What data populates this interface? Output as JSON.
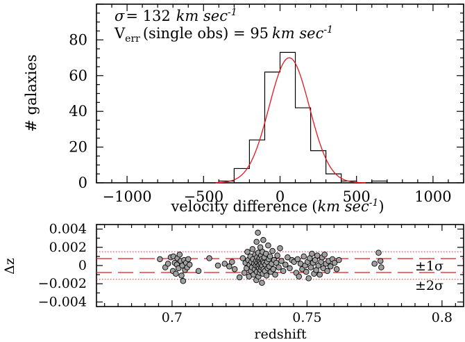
{
  "chart_data": [
    {
      "type": "histogram",
      "xlabel": "velocity difference",
      "xlabel_unit": "km sec",
      "xlabel_unit_exp": "-1",
      "ylabel": "# galaxies",
      "xlim": [
        -1200,
        1200
      ],
      "ylim": [
        0,
        100
      ],
      "xticks": [
        -1000,
        -500,
        0,
        500,
        1000
      ],
      "yticks": [
        0,
        20,
        40,
        60,
        80
      ],
      "annotation_sigma": {
        "symbol": "σ",
        "text": "=  132",
        "unit": "km sec",
        "unit_exp": "-1"
      },
      "annotation_verr": {
        "symbol": "V",
        "subscript": "err",
        "text": "(single obs) = 95",
        "unit": "km sec",
        "unit_exp": "-1"
      },
      "bin_width": 100,
      "bins": [
        {
          "x0": -400,
          "x1": -300,
          "count": 1
        },
        {
          "x0": -300,
          "x1": -200,
          "count": 8
        },
        {
          "x0": -200,
          "x1": -100,
          "count": 24
        },
        {
          "x0": -100,
          "x1": 0,
          "count": 62
        },
        {
          "x0": 0,
          "x1": 100,
          "count": 73
        },
        {
          "x0": 100,
          "x1": 200,
          "count": 42
        },
        {
          "x0": 200,
          "x1": 300,
          "count": 18
        },
        {
          "x0": 300,
          "x1": 400,
          "count": 5
        },
        {
          "x0": 400,
          "x1": 500,
          "count": 1
        },
        {
          "x0": 500,
          "x1": 600,
          "count": 0
        },
        {
          "x0": 600,
          "x1": 700,
          "count": 1
        }
      ],
      "gaussian_fit": {
        "mean": 60,
        "sigma": 132,
        "amplitude": 70,
        "color": "#e8141c"
      },
      "histogram_color": "#000000"
    },
    {
      "type": "scatter",
      "xlabel": "redshift",
      "ylabel": "Δz",
      "xlim": [
        0.672,
        0.808
      ],
      "ylim": [
        -0.0045,
        0.0045
      ],
      "xticks": [
        "0.7",
        "0.75",
        "0.8"
      ],
      "xtick_values": [
        0.7,
        0.75,
        0.8
      ],
      "yticks": [
        "0.004",
        "0.002",
        "0",
        "−0.002",
        "−0.004"
      ],
      "ytick_values": [
        0.004,
        0.002,
        0,
        -0.002,
        -0.004
      ],
      "band_1sigma": 0.00076,
      "band_2sigma": 0.00152,
      "band_1sigma_label": "±1σ",
      "band_2sigma_label": "±2σ",
      "line_color": "#e8141c",
      "marker_fill": "#a0a0a0",
      "marker_edge": "#000000",
      "points": [
        [
          0.6955,
          0.0007
        ],
        [
          0.6975,
          -0.0002
        ],
        [
          0.6985,
          0.0002
        ],
        [
          0.6995,
          0.0009
        ],
        [
          0.7003,
          -0.0006
        ],
        [
          0.7005,
          0.001
        ],
        [
          0.701,
          0.0003
        ],
        [
          0.7014,
          -0.0009
        ],
        [
          0.7018,
          0.0001
        ],
        [
          0.702,
          0.0008
        ],
        [
          0.7024,
          -0.0003
        ],
        [
          0.7028,
          0.0012
        ],
        [
          0.7032,
          0.0005
        ],
        [
          0.7035,
          -0.0011
        ],
        [
          0.7038,
          0.0
        ],
        [
          0.7041,
          -0.0017
        ],
        [
          0.7045,
          0.0006
        ],
        [
          0.7048,
          -0.0005
        ],
        [
          0.7052,
          0.0003
        ],
        [
          0.7056,
          -0.0002
        ],
        [
          0.706,
          0.0007
        ],
        [
          0.7065,
          0.0001
        ],
        [
          0.7098,
          -0.0006
        ],
        [
          0.7138,
          0.0008
        ],
        [
          0.717,
          0.0
        ],
        [
          0.7195,
          0.0002
        ],
        [
          0.7212,
          -0.0001
        ],
        [
          0.7222,
          0.0004
        ],
        [
          0.7232,
          -0.0004
        ],
        [
          0.725,
          -0.0013
        ],
        [
          0.7262,
          0.0008
        ],
        [
          0.7268,
          -0.0008
        ],
        [
          0.7272,
          0.0003
        ],
        [
          0.7276,
          -0.0003
        ],
        [
          0.7279,
          0.0015
        ],
        [
          0.7282,
          0.0006
        ],
        [
          0.7285,
          -0.0012
        ],
        [
          0.7287,
          0.0001
        ],
        [
          0.729,
          0.001
        ],
        [
          0.7292,
          -0.0006
        ],
        [
          0.7294,
          0.0004
        ],
        [
          0.7296,
          -0.0002
        ],
        [
          0.7298,
          0.0018
        ],
        [
          0.73,
          0.0007
        ],
        [
          0.7302,
          -0.001
        ],
        [
          0.7304,
          0.0002
        ],
        [
          0.7306,
          -0.0004
        ],
        [
          0.7308,
          0.0012
        ],
        [
          0.731,
          0.0
        ],
        [
          0.7311,
          0.0005
        ],
        [
          0.7312,
          -0.0016
        ],
        [
          0.7313,
          0.0026
        ],
        [
          0.7314,
          -0.0007
        ],
        [
          0.7315,
          0.0009
        ],
        [
          0.7316,
          0.0003
        ],
        [
          0.7317,
          -0.0001
        ],
        [
          0.7318,
          0.0036
        ],
        [
          0.7319,
          0.0014
        ],
        [
          0.732,
          -0.0012
        ],
        [
          0.7321,
          0.0006
        ],
        [
          0.7322,
          -0.0003
        ],
        [
          0.7323,
          0.0001
        ],
        [
          0.7324,
          0.0008
        ],
        [
          0.7325,
          -0.0008
        ],
        [
          0.7326,
          0.0004
        ],
        [
          0.7327,
          0.002
        ],
        [
          0.7328,
          -0.0005
        ],
        [
          0.7329,
          0.0002
        ],
        [
          0.733,
          0.0011
        ],
        [
          0.7331,
          -0.0002
        ],
        [
          0.7332,
          0.0007
        ],
        [
          0.7333,
          -0.0019
        ],
        [
          0.7334,
          0.0
        ],
        [
          0.7335,
          0.0015
        ],
        [
          0.7336,
          -0.0009
        ],
        [
          0.7337,
          0.0005
        ],
        [
          0.7338,
          0.0028
        ],
        [
          0.7339,
          -0.0004
        ],
        [
          0.734,
          0.0003
        ],
        [
          0.7342,
          0.0009
        ],
        [
          0.7344,
          -0.0006
        ],
        [
          0.7346,
          0.0001
        ],
        [
          0.7348,
          0.0013
        ],
        [
          0.735,
          -0.0011
        ],
        [
          0.7352,
          0.0004
        ],
        [
          0.7354,
          -0.0003
        ],
        [
          0.7356,
          0.0022
        ],
        [
          0.7358,
          0.0007
        ],
        [
          0.736,
          -0.0001
        ],
        [
          0.7363,
          0.001
        ],
        [
          0.7366,
          -0.0007
        ],
        [
          0.7369,
          0.0002
        ],
        [
          0.7372,
          0.0016
        ],
        [
          0.7375,
          -0.0004
        ],
        [
          0.7378,
          0.0006
        ],
        [
          0.7382,
          -0.001
        ],
        [
          0.7386,
          0.0003
        ],
        [
          0.739,
          0.0011
        ],
        [
          0.7395,
          -0.0002
        ],
        [
          0.74,
          0.0019
        ],
        [
          0.7405,
          0.0005
        ],
        [
          0.7412,
          -0.0006
        ],
        [
          0.742,
          0.0001
        ],
        [
          0.7428,
          0.0009
        ],
        [
          0.7436,
          -0.0003
        ],
        [
          0.7444,
          0.0006
        ],
        [
          0.7452,
          0.0004
        ],
        [
          0.746,
          -0.0008
        ],
        [
          0.7465,
          0.0007
        ],
        [
          0.747,
          -0.0012
        ],
        [
          0.7476,
          0.0002
        ],
        [
          0.7482,
          -0.0004
        ],
        [
          0.7488,
          0.001
        ],
        [
          0.7493,
          0.0
        ],
        [
          0.7497,
          -0.0007
        ],
        [
          0.7502,
          0.0004
        ],
        [
          0.7506,
          -0.0014
        ],
        [
          0.751,
          0.0008
        ],
        [
          0.7514,
          -0.0002
        ],
        [
          0.7518,
          0.0013
        ],
        [
          0.7522,
          0.0003
        ],
        [
          0.7526,
          -0.0009
        ],
        [
          0.753,
          0.0006
        ],
        [
          0.7534,
          -0.0005
        ],
        [
          0.7538,
          0.0011
        ],
        [
          0.7542,
          0.0
        ],
        [
          0.7547,
          -0.001
        ],
        [
          0.7552,
          0.0004
        ],
        [
          0.7556,
          0.0009
        ],
        [
          0.756,
          -0.0003
        ],
        [
          0.7565,
          0.0012
        ],
        [
          0.757,
          0.0002
        ],
        [
          0.7575,
          -0.0006
        ],
        [
          0.758,
          0.0005
        ],
        [
          0.7587,
          -0.0001
        ],
        [
          0.7594,
          0.0007
        ],
        [
          0.7602,
          0.0003
        ],
        [
          0.761,
          -0.0004
        ],
        [
          0.7618,
          0.0006
        ],
        [
          0.775,
          0.0002
        ],
        [
          0.7765,
          0.0014
        ],
        [
          0.7772,
          0.0005
        ],
        [
          0.7775,
          -0.0002
        ]
      ]
    }
  ]
}
